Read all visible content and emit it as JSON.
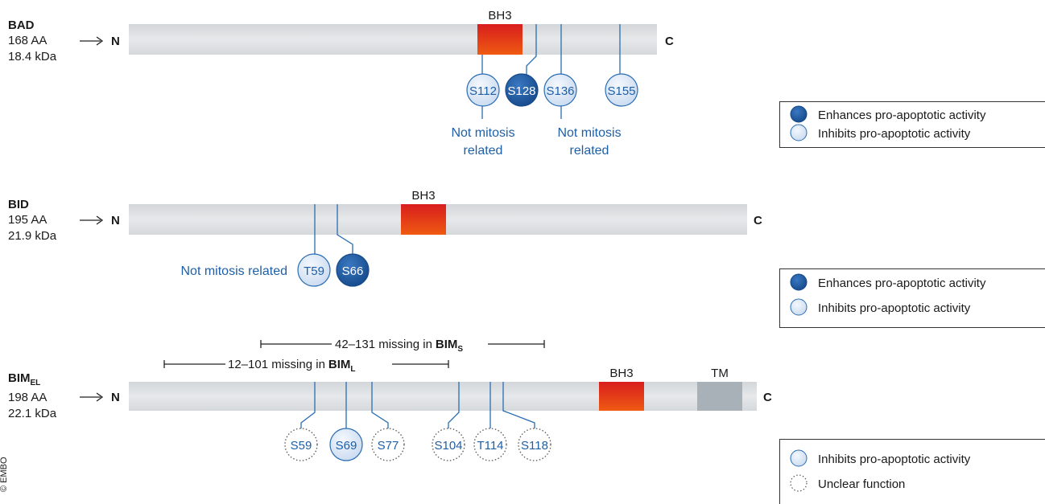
{
  "copyright": "© EMBO",
  "colors": {
    "enhance_fill": "#1e5aa0",
    "inhibit_fill": "#dde9f7",
    "bh3_top": "#d81e1e",
    "bh3_bottom": "#ef5a12",
    "tm": "#a8b0b8",
    "bar": "#dfe1e3",
    "site_line": "#2a6db3",
    "note_text": "#1f5fa6"
  },
  "proteins": [
    {
      "name": "BAD",
      "aa": "168 AA",
      "mass": "18.4 kDa",
      "n_label": "N",
      "c_label": "C",
      "domains": [
        {
          "label": "BH3",
          "type": "bh3"
        }
      ],
      "sites": [
        {
          "label": "S112",
          "function": "inhibits"
        },
        {
          "label": "S128",
          "function": "enhances"
        },
        {
          "label": "S136",
          "function": "inhibits"
        },
        {
          "label": "S155",
          "function": "inhibits"
        }
      ],
      "notes": [
        "Not mitosis related",
        "Not mitosis related"
      ],
      "legend": [
        {
          "icon": "enhances",
          "text": "Enhances pro-apoptotic activity"
        },
        {
          "icon": "inhibits",
          "text": "Inhibits pro-apoptotic activity"
        }
      ]
    },
    {
      "name": "BID",
      "aa": "195 AA",
      "mass": "21.9 kDa",
      "n_label": "N",
      "c_label": "C",
      "domains": [
        {
          "label": "BH3",
          "type": "bh3"
        }
      ],
      "sites": [
        {
          "label": "T59",
          "function": "inhibits"
        },
        {
          "label": "S66",
          "function": "enhances"
        }
      ],
      "notes": [
        "Not mitosis related"
      ],
      "legend": [
        {
          "icon": "enhances",
          "text": "Enhances pro-apoptotic activity"
        },
        {
          "icon": "inhibits",
          "text": "Inhibits pro-apoptotic activity"
        }
      ]
    },
    {
      "name": "BIM",
      "name_sub": "EL",
      "aa": "198 AA",
      "mass": "22.1 kDa",
      "n_label": "N",
      "c_label": "C",
      "domains": [
        {
          "label": "BH3",
          "type": "bh3"
        },
        {
          "label": "TM",
          "type": "tm"
        }
      ],
      "ranges": [
        {
          "text": "42–131 missing in",
          "isoform": "BIM",
          "isoform_sub": "S"
        },
        {
          "text": "12–101 missing in",
          "isoform": "BIM",
          "isoform_sub": "L"
        }
      ],
      "sites": [
        {
          "label": "S59",
          "function": "unclear"
        },
        {
          "label": "S69",
          "function": "inhibits"
        },
        {
          "label": "S77",
          "function": "unclear"
        },
        {
          "label": "S104",
          "function": "unclear"
        },
        {
          "label": "T114",
          "function": "unclear"
        },
        {
          "label": "S118",
          "function": "unclear"
        }
      ],
      "legend": [
        {
          "icon": "inhibits",
          "text": "Inhibits pro-apoptotic activity"
        },
        {
          "icon": "unclear",
          "text": "Unclear function"
        }
      ]
    }
  ]
}
